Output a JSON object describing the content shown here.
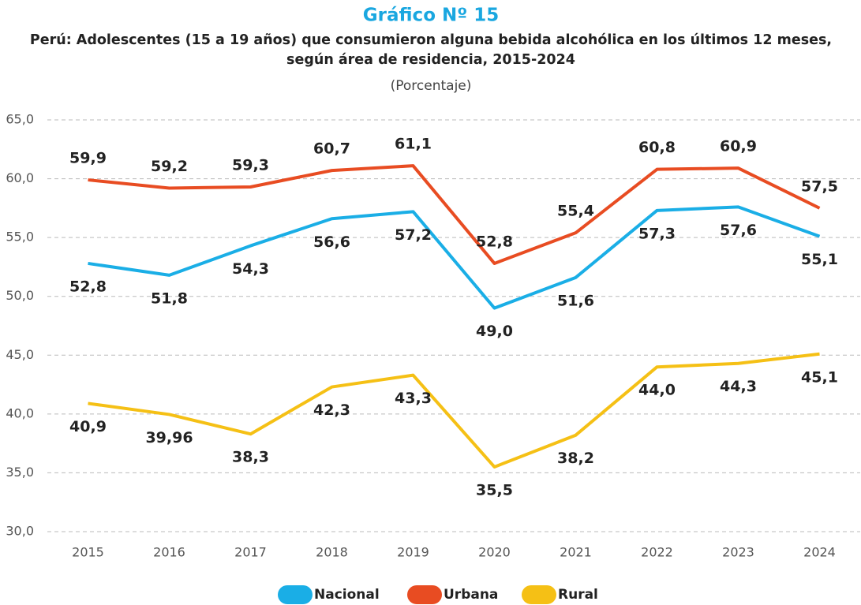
{
  "chart_data": {
    "type": "line",
    "title": "Gráfico Nº 15",
    "subtitle": [
      "Perú: Adolescentes (15 a 19 años) que consumieron alguna bebida alcohólica en los últimos 12 meses,",
      "según área de residencia, 2015-2024"
    ],
    "unit": "(Porcentaje)",
    "categories": [
      "2015",
      "2016",
      "2017",
      "2018",
      "2019",
      "2020",
      "2021",
      "2022",
      "2023",
      "2024"
    ],
    "series": [
      {
        "name": "Nacional",
        "color": "#1aaee6",
        "values": [
          52.8,
          51.8,
          54.3,
          56.6,
          57.2,
          49.0,
          51.6,
          57.3,
          57.6,
          55.1
        ],
        "value_labels": [
          "52,8",
          "51,8",
          "54,3",
          "56,6",
          "57,2",
          "49,0",
          "51,6",
          "57,3",
          "57,6",
          "55,1"
        ]
      },
      {
        "name": "Urbana",
        "color": "#e84c22",
        "values": [
          59.9,
          59.2,
          59.3,
          60.7,
          61.1,
          52.8,
          55.4,
          60.8,
          60.9,
          57.5
        ],
        "value_labels": [
          "59,9",
          "59,2",
          "59,3",
          "60,7",
          "61,1",
          "52,8",
          "55,4",
          "60,8",
          "60,9",
          "57,5"
        ]
      },
      {
        "name": "Rural",
        "color": "#f5c015",
        "values": [
          40.9,
          39.96,
          38.3,
          42.3,
          43.3,
          35.5,
          38.2,
          44.0,
          44.3,
          45.1
        ],
        "value_labels": [
          "40,9",
          "39,96",
          "38,3",
          "42,3",
          "43,3",
          "35,5",
          "38,2",
          "44,0",
          "44,3",
          "45,1"
        ]
      }
    ],
    "ylim": [
      30,
      65
    ],
    "yticks": [
      {
        "value": 30,
        "label": "30,0"
      },
      {
        "value": 35,
        "label": "35,0"
      },
      {
        "value": 40,
        "label": "40,0"
      },
      {
        "value": 45,
        "label": "45,0"
      },
      {
        "value": 50,
        "label": "50,0"
      },
      {
        "value": 55,
        "label": "55,0"
      },
      {
        "value": 60,
        "label": "60,0"
      },
      {
        "value": 65,
        "label": "65,0"
      }
    ],
    "grid": true,
    "legend": "bottom"
  }
}
